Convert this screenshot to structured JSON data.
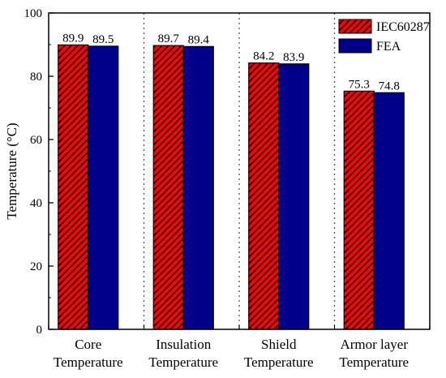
{
  "chart_data": {
    "type": "bar",
    "title": "",
    "xlabel": "",
    "ylabel": "Temperature (°C)",
    "ylim": [
      0,
      100
    ],
    "yticks": [
      0,
      20,
      40,
      60,
      80,
      100
    ],
    "grid": false,
    "legend_position": "top-right",
    "categories": [
      [
        "Core",
        "Temperature"
      ],
      [
        "Insulation",
        "Temperature"
      ],
      [
        "Shield",
        "Temperature"
      ],
      [
        "Armor layer",
        "Temperature"
      ]
    ],
    "series": [
      {
        "name": "IEC60287",
        "values": [
          89.9,
          89.7,
          84.2,
          75.3
        ],
        "labels": [
          "89.9",
          "89.7",
          "84.2",
          "75.3"
        ],
        "color": "#ff0000",
        "pattern": "diagonal-hatch"
      },
      {
        "name": "FEA",
        "values": [
          89.5,
          89.4,
          83.9,
          74.8
        ],
        "labels": [
          "89.5",
          "89.4",
          "83.9",
          "74.8"
        ],
        "color": "#00008b",
        "pattern": "solid"
      }
    ]
  }
}
